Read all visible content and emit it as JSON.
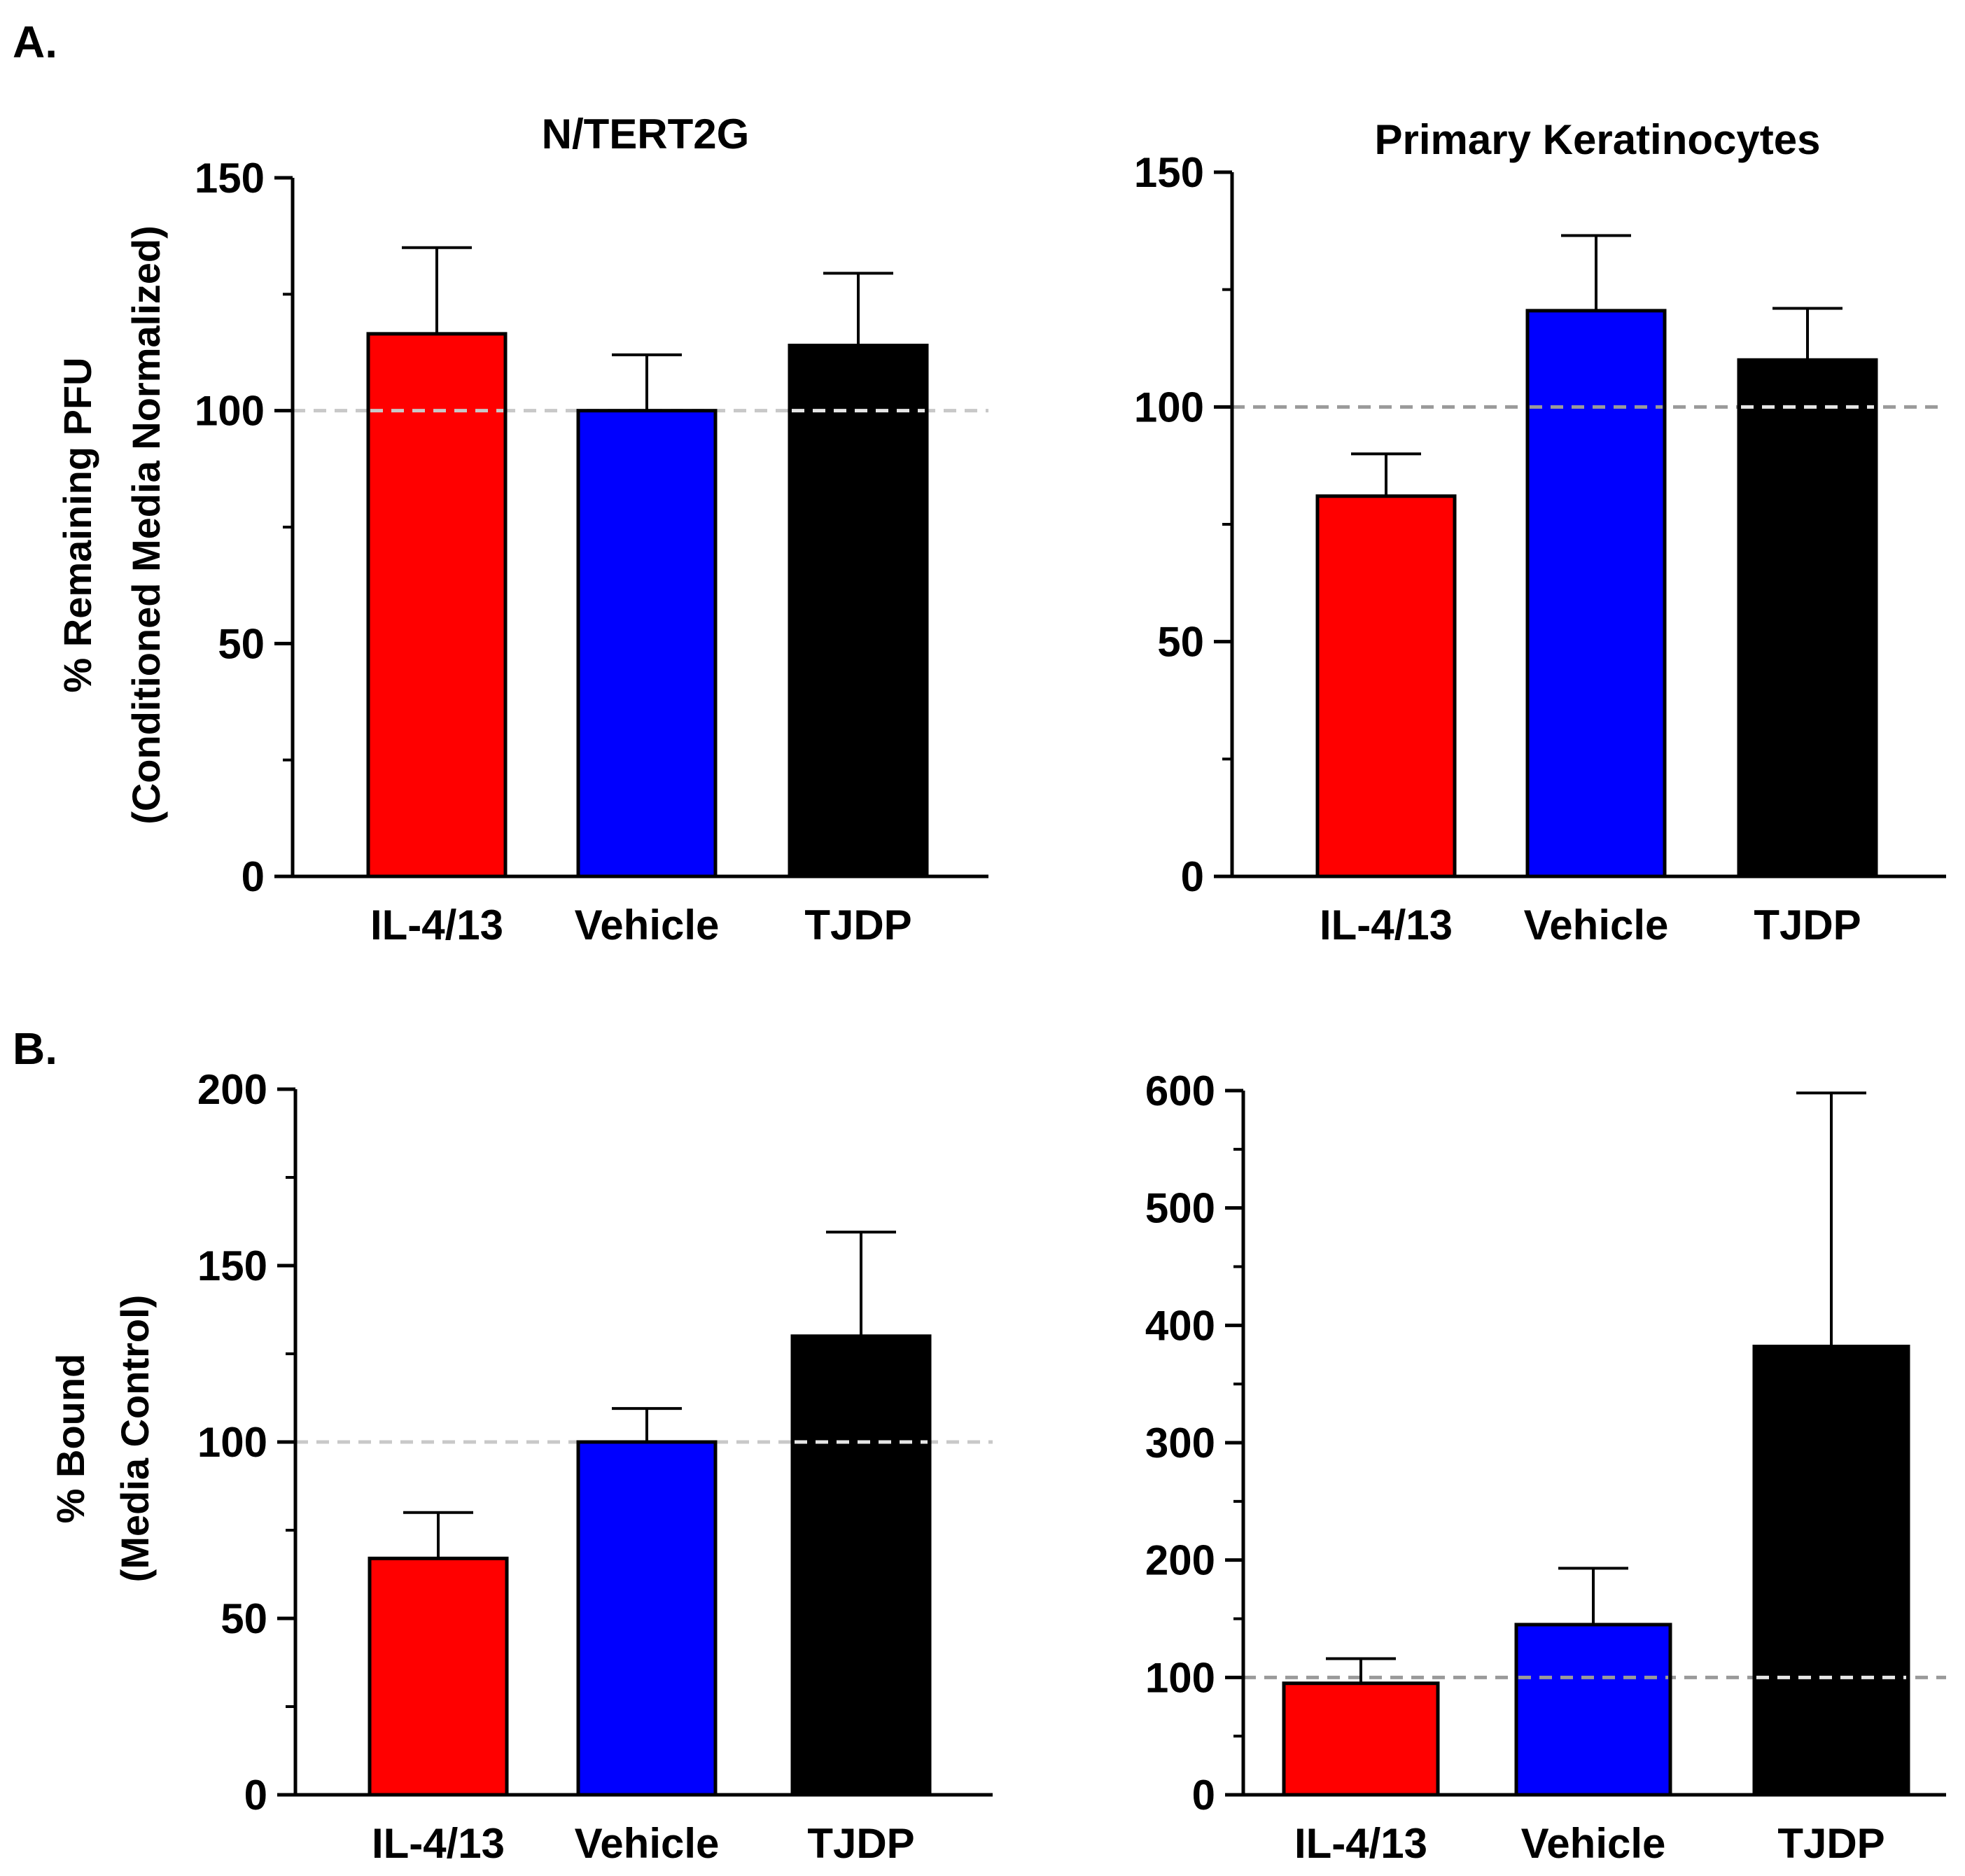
{
  "panel_labels": [
    "A.",
    "B."
  ],
  "chart_data": [
    {
      "type": "bar",
      "title": "N/TERT2G",
      "ylabel_lines": [
        "% Remaining PFU",
        "(Conditioned Media Normalized)"
      ],
      "categories": [
        "IL-4/13",
        "Vehicle",
        "TJDP"
      ],
      "values": [
        116.5,
        100,
        114
      ],
      "errors": [
        18.5,
        12,
        15.5
      ],
      "colors": [
        "#ff0000",
        "#0000ff",
        "#000000"
      ],
      "ylim": [
        0,
        150
      ],
      "major_ticks": [
        0,
        50,
        100,
        150
      ],
      "minor_step": 25,
      "reference_line": 100,
      "reference_color": "#c8c8c8"
    },
    {
      "type": "bar",
      "title": "Primary Keratinocytes",
      "ylabel_lines": [],
      "categories": [
        "IL-4/13",
        "Vehicle",
        "TJDP"
      ],
      "values": [
        81,
        120.5,
        110
      ],
      "errors": [
        9,
        16,
        11
      ],
      "colors": [
        "#ff0000",
        "#0000ff",
        "#000000"
      ],
      "ylim": [
        0,
        150
      ],
      "major_ticks": [
        0,
        50,
        100,
        150
      ],
      "minor_step": 25,
      "reference_line": 100,
      "reference_color": "#9a9a9a"
    },
    {
      "type": "bar",
      "title": "",
      "ylabel_lines": [
        "% Bound",
        "(Media Control)"
      ],
      "categories": [
        "IL-4/13",
        "Vehicle",
        "TJDP"
      ],
      "values": [
        67,
        100,
        130
      ],
      "errors": [
        13,
        9.5,
        29.5
      ],
      "colors": [
        "#ff0000",
        "#0000ff",
        "#000000"
      ],
      "ylim": [
        0,
        200
      ],
      "major_ticks": [
        0,
        50,
        100,
        150,
        200
      ],
      "minor_step": 25,
      "reference_line": 100,
      "reference_color": "#c8c8c8"
    },
    {
      "type": "bar",
      "title": "",
      "ylabel_lines": [],
      "categories": [
        "IL-4/13",
        "Vehicle",
        "TJDP"
      ],
      "values": [
        95,
        145,
        382
      ],
      "errors": [
        21,
        48,
        216
      ],
      "colors": [
        "#ff0000",
        "#0000ff",
        "#000000"
      ],
      "ylim": [
        0,
        600
      ],
      "major_ticks": [
        0,
        100,
        200,
        300,
        400,
        500,
        600
      ],
      "minor_step": 50,
      "reference_line": 100,
      "reference_color": "#9a9a9a"
    }
  ]
}
